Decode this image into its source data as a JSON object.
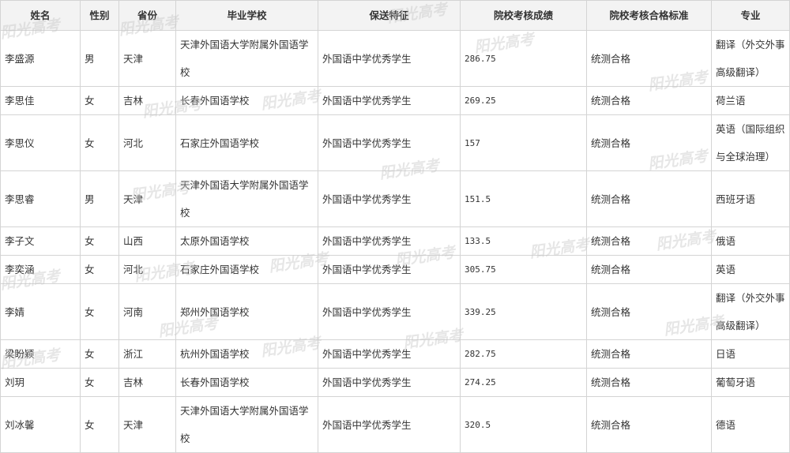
{
  "table": {
    "header": [
      "姓名",
      "性别",
      "省份",
      "毕业学校",
      "保送特征",
      "院校考核成绩",
      "院校考核合格标准",
      "专业"
    ],
    "rows": [
      [
        "李盛源",
        "男",
        "天津",
        "天津外国语大学附属外国语学校",
        "外国语中学优秀学生",
        "286.75",
        "统测合格",
        "翻译（外交外事高级翻译）"
      ],
      [
        "李思佳",
        "女",
        "吉林",
        "长春外国语学校",
        "外国语中学优秀学生",
        "269.25",
        "统测合格",
        "荷兰语"
      ],
      [
        "李思仪",
        "女",
        "河北",
        "石家庄外国语学校",
        "外国语中学优秀学生",
        "157",
        "统测合格",
        "英语（国际组织与全球治理）"
      ],
      [
        "李思睿",
        "男",
        "天津",
        "天津外国语大学附属外国语学校",
        "外国语中学优秀学生",
        "151.5",
        "统测合格",
        "西班牙语"
      ],
      [
        "李子文",
        "女",
        "山西",
        "太原外国语学校",
        "外国语中学优秀学生",
        "133.5",
        "统测合格",
        "俄语"
      ],
      [
        "李奕涵",
        "女",
        "河北",
        "石家庄外国语学校",
        "外国语中学优秀学生",
        "305.75",
        "统测合格",
        "英语"
      ],
      [
        "李婧",
        "女",
        "河南",
        "郑州外国语学校",
        "外国语中学优秀学生",
        "339.25",
        "统测合格",
        "翻译（外交外事高级翻译）"
      ],
      [
        "梁盼颖",
        "女",
        "浙江",
        "杭州外国语学校",
        "外国语中学优秀学生",
        "282.75",
        "统测合格",
        "日语"
      ],
      [
        "刘玥",
        "女",
        "吉林",
        "长春外国语学校",
        "外国语中学优秀学生",
        "274.25",
        "统测合格",
        "葡萄牙语"
      ],
      [
        "刘冰馨",
        "女",
        "天津",
        "天津外国语大学附属外国语学校",
        "外国语中学优秀学生",
        "320.5",
        "统测合格",
        "德语"
      ]
    ]
  },
  "watermark": "阳光高考"
}
